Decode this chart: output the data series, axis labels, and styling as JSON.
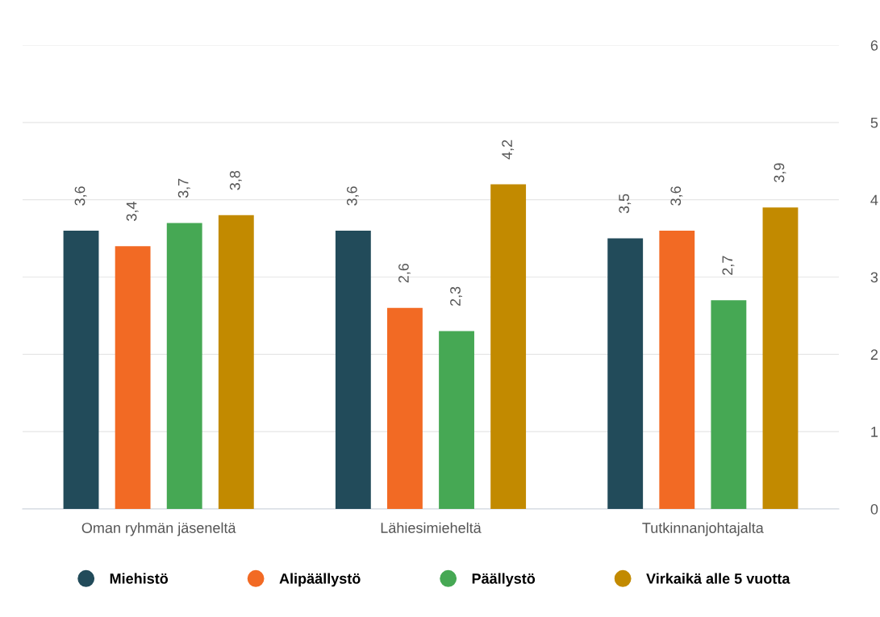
{
  "chart_data": {
    "type": "bar",
    "categories": [
      "Oman ryhmän jäseneltä",
      "Lähiesimieheltä",
      "Tutkinnanjohtajalta"
    ],
    "series": [
      {
        "name": "Miehistö",
        "color": "#224b5a",
        "values": [
          3.6,
          3.6,
          3.5
        ],
        "value_labels": [
          "3,6",
          "3,6",
          "3,5"
        ]
      },
      {
        "name": "Alipäällystö",
        "color": "#f26a24",
        "values": [
          3.4,
          2.6,
          3.6
        ],
        "value_labels": [
          "3,4",
          "2,6",
          "3,6"
        ]
      },
      {
        "name": "Päällystö",
        "color": "#46a854",
        "values": [
          3.7,
          2.3,
          2.7
        ],
        "value_labels": [
          "3,7",
          "2,3",
          "2,7"
        ]
      },
      {
        "name": "Virkaikä alle 5 vuotta",
        "color": "#c28a00",
        "values": [
          3.8,
          4.2,
          3.9
        ],
        "value_labels": [
          "3,8",
          "4,2",
          "3,9"
        ]
      }
    ],
    "ylim": [
      0,
      6
    ],
    "yticks": [
      0,
      1,
      2,
      3,
      4,
      5,
      6
    ],
    "grid": "y",
    "legend": "bottom"
  }
}
